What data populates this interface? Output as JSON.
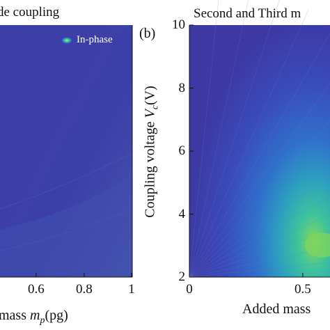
{
  "chart_data": [
    {
      "type": "heatmap",
      "title": "de coupling",
      "legend": {
        "label": "In-phase",
        "placement": "top-right"
      },
      "xlabel_parts": [
        "mass ",
        "m",
        "p",
        "(pg)"
      ],
      "xticks": [
        "0.6",
        "0.8",
        "1"
      ],
      "x_visible_range": [
        0.45,
        1.0
      ],
      "colors": {
        "field": "#3b3fa6",
        "field_light": "#4550ae",
        "marker_outer": "#3a57c4",
        "marker_mid": "#2fc4b4",
        "marker_core": "#f5e32a"
      }
    },
    {
      "type": "heatmap",
      "panel_label": "(b)",
      "title": "Second and Third m",
      "ylabel_parts": [
        "Coupling voltage ",
        "V",
        "c",
        "(V)"
      ],
      "yticks": [
        "10",
        "8",
        "6",
        "4",
        "2"
      ],
      "ylim": [
        2,
        10
      ],
      "xlabel": "Added mass",
      "xticks": [
        "0",
        "0.5"
      ],
      "x_visible_range": [
        0,
        0.62
      ],
      "peak": {
        "x": 0.62,
        "y": 3.1
      },
      "colors": {
        "field": "#3c3aa3",
        "mid": "#2f84c6",
        "high": "#2bbd99",
        "peak": "#84d85a"
      }
    }
  ]
}
